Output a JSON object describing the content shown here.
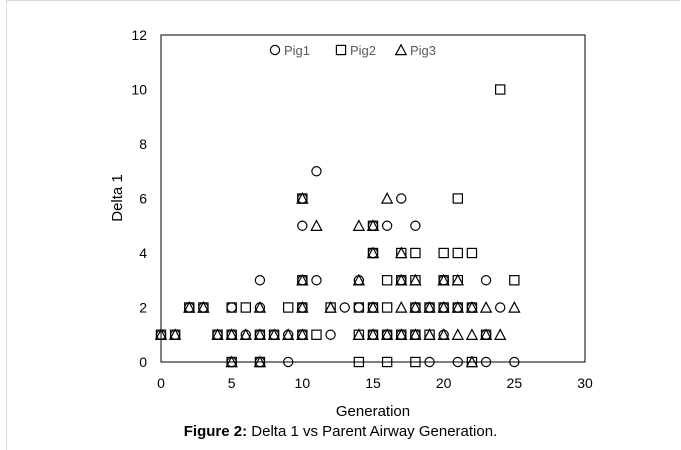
{
  "chart_data": {
    "type": "scatter",
    "title": "",
    "xlabel": "Generation",
    "ylabel": "Delta 1",
    "xlim": [
      0,
      30
    ],
    "ylim": [
      0,
      12
    ],
    "x_ticks": [
      0,
      5,
      10,
      15,
      20,
      25,
      30
    ],
    "y_ticks": [
      0,
      2,
      4,
      6,
      8,
      10,
      12
    ],
    "legend_position": "top-center",
    "grid": false,
    "series": [
      {
        "name": "Pig1",
        "marker": "circle",
        "points": [
          [
            0,
            1
          ],
          [
            1,
            1
          ],
          [
            2,
            2
          ],
          [
            3,
            2
          ],
          [
            4,
            1
          ],
          [
            5,
            1
          ],
          [
            5,
            2
          ],
          [
            5,
            0
          ],
          [
            6,
            1
          ],
          [
            7,
            0
          ],
          [
            7,
            1
          ],
          [
            7,
            2
          ],
          [
            7,
            3
          ],
          [
            8,
            1
          ],
          [
            9,
            1
          ],
          [
            9,
            0
          ],
          [
            10,
            2
          ],
          [
            10,
            1
          ],
          [
            10,
            5
          ],
          [
            10,
            3
          ],
          [
            10,
            6
          ],
          [
            11,
            7
          ],
          [
            11,
            3
          ],
          [
            12,
            1
          ],
          [
            13,
            2
          ],
          [
            14,
            2
          ],
          [
            14,
            3
          ],
          [
            15,
            1
          ],
          [
            15,
            2
          ],
          [
            15,
            4
          ],
          [
            15,
            5
          ],
          [
            16,
            5
          ],
          [
            16,
            1
          ],
          [
            17,
            6
          ],
          [
            17,
            1
          ],
          [
            17,
            3
          ],
          [
            18,
            5
          ],
          [
            18,
            2
          ],
          [
            18,
            1
          ],
          [
            19,
            0
          ],
          [
            19,
            2
          ],
          [
            20,
            2
          ],
          [
            20,
            3
          ],
          [
            20,
            1
          ],
          [
            21,
            0
          ],
          [
            21,
            2
          ],
          [
            22,
            2
          ],
          [
            23,
            1
          ],
          [
            23,
            3
          ],
          [
            23,
            0
          ],
          [
            24,
            2
          ],
          [
            25,
            0
          ]
        ]
      },
      {
        "name": "Pig2",
        "marker": "square",
        "points": [
          [
            0,
            1
          ],
          [
            1,
            1
          ],
          [
            2,
            2
          ],
          [
            3,
            2
          ],
          [
            4,
            1
          ],
          [
            5,
            0
          ],
          [
            5,
            1
          ],
          [
            5,
            2
          ],
          [
            6,
            2
          ],
          [
            7,
            0
          ],
          [
            7,
            1
          ],
          [
            8,
            1
          ],
          [
            9,
            2
          ],
          [
            10,
            1
          ],
          [
            10,
            2
          ],
          [
            10,
            3
          ],
          [
            10,
            6
          ],
          [
            11,
            1
          ],
          [
            12,
            2
          ],
          [
            14,
            0
          ],
          [
            14,
            1
          ],
          [
            14,
            2
          ],
          [
            15,
            1
          ],
          [
            15,
            2
          ],
          [
            15,
            4
          ],
          [
            15,
            5
          ],
          [
            16,
            0
          ],
          [
            16,
            1
          ],
          [
            16,
            2
          ],
          [
            16,
            3
          ],
          [
            17,
            1
          ],
          [
            17,
            3
          ],
          [
            17,
            4
          ],
          [
            18,
            0
          ],
          [
            18,
            1
          ],
          [
            18,
            2
          ],
          [
            18,
            3
          ],
          [
            18,
            4
          ],
          [
            19,
            1
          ],
          [
            19,
            2
          ],
          [
            20,
            2
          ],
          [
            20,
            3
          ],
          [
            20,
            4
          ],
          [
            21,
            2
          ],
          [
            21,
            3
          ],
          [
            21,
            4
          ],
          [
            21,
            6
          ],
          [
            22,
            0
          ],
          [
            22,
            2
          ],
          [
            22,
            4
          ],
          [
            23,
            1
          ],
          [
            24,
            10
          ],
          [
            25,
            3
          ]
        ]
      },
      {
        "name": "Pig3",
        "marker": "triangle",
        "points": [
          [
            0,
            1
          ],
          [
            1,
            1
          ],
          [
            2,
            2
          ],
          [
            3,
            2
          ],
          [
            4,
            1
          ],
          [
            5,
            1
          ],
          [
            5,
            0
          ],
          [
            6,
            1
          ],
          [
            7,
            1
          ],
          [
            7,
            0
          ],
          [
            7,
            2
          ],
          [
            8,
            1
          ],
          [
            9,
            1
          ],
          [
            10,
            1
          ],
          [
            10,
            2
          ],
          [
            10,
            3
          ],
          [
            10,
            6
          ],
          [
            11,
            5
          ],
          [
            12,
            2
          ],
          [
            14,
            5
          ],
          [
            14,
            1
          ],
          [
            14,
            3
          ],
          [
            15,
            5
          ],
          [
            15,
            4
          ],
          [
            15,
            1
          ],
          [
            15,
            2
          ],
          [
            16,
            6
          ],
          [
            16,
            1
          ],
          [
            17,
            4
          ],
          [
            17,
            2
          ],
          [
            17,
            1
          ],
          [
            17,
            3
          ],
          [
            18,
            3
          ],
          [
            18,
            1
          ],
          [
            18,
            2
          ],
          [
            19,
            2
          ],
          [
            19,
            1
          ],
          [
            20,
            2
          ],
          [
            20,
            3
          ],
          [
            20,
            1
          ],
          [
            21,
            1
          ],
          [
            21,
            2
          ],
          [
            21,
            3
          ],
          [
            22,
            0
          ],
          [
            22,
            1
          ],
          [
            22,
            2
          ],
          [
            23,
            1
          ],
          [
            23,
            2
          ],
          [
            24,
            1
          ],
          [
            25,
            2
          ]
        ]
      }
    ]
  },
  "caption": {
    "label": "Figure 2:",
    "text": " Delta 1 vs Parent Airway Generation."
  }
}
